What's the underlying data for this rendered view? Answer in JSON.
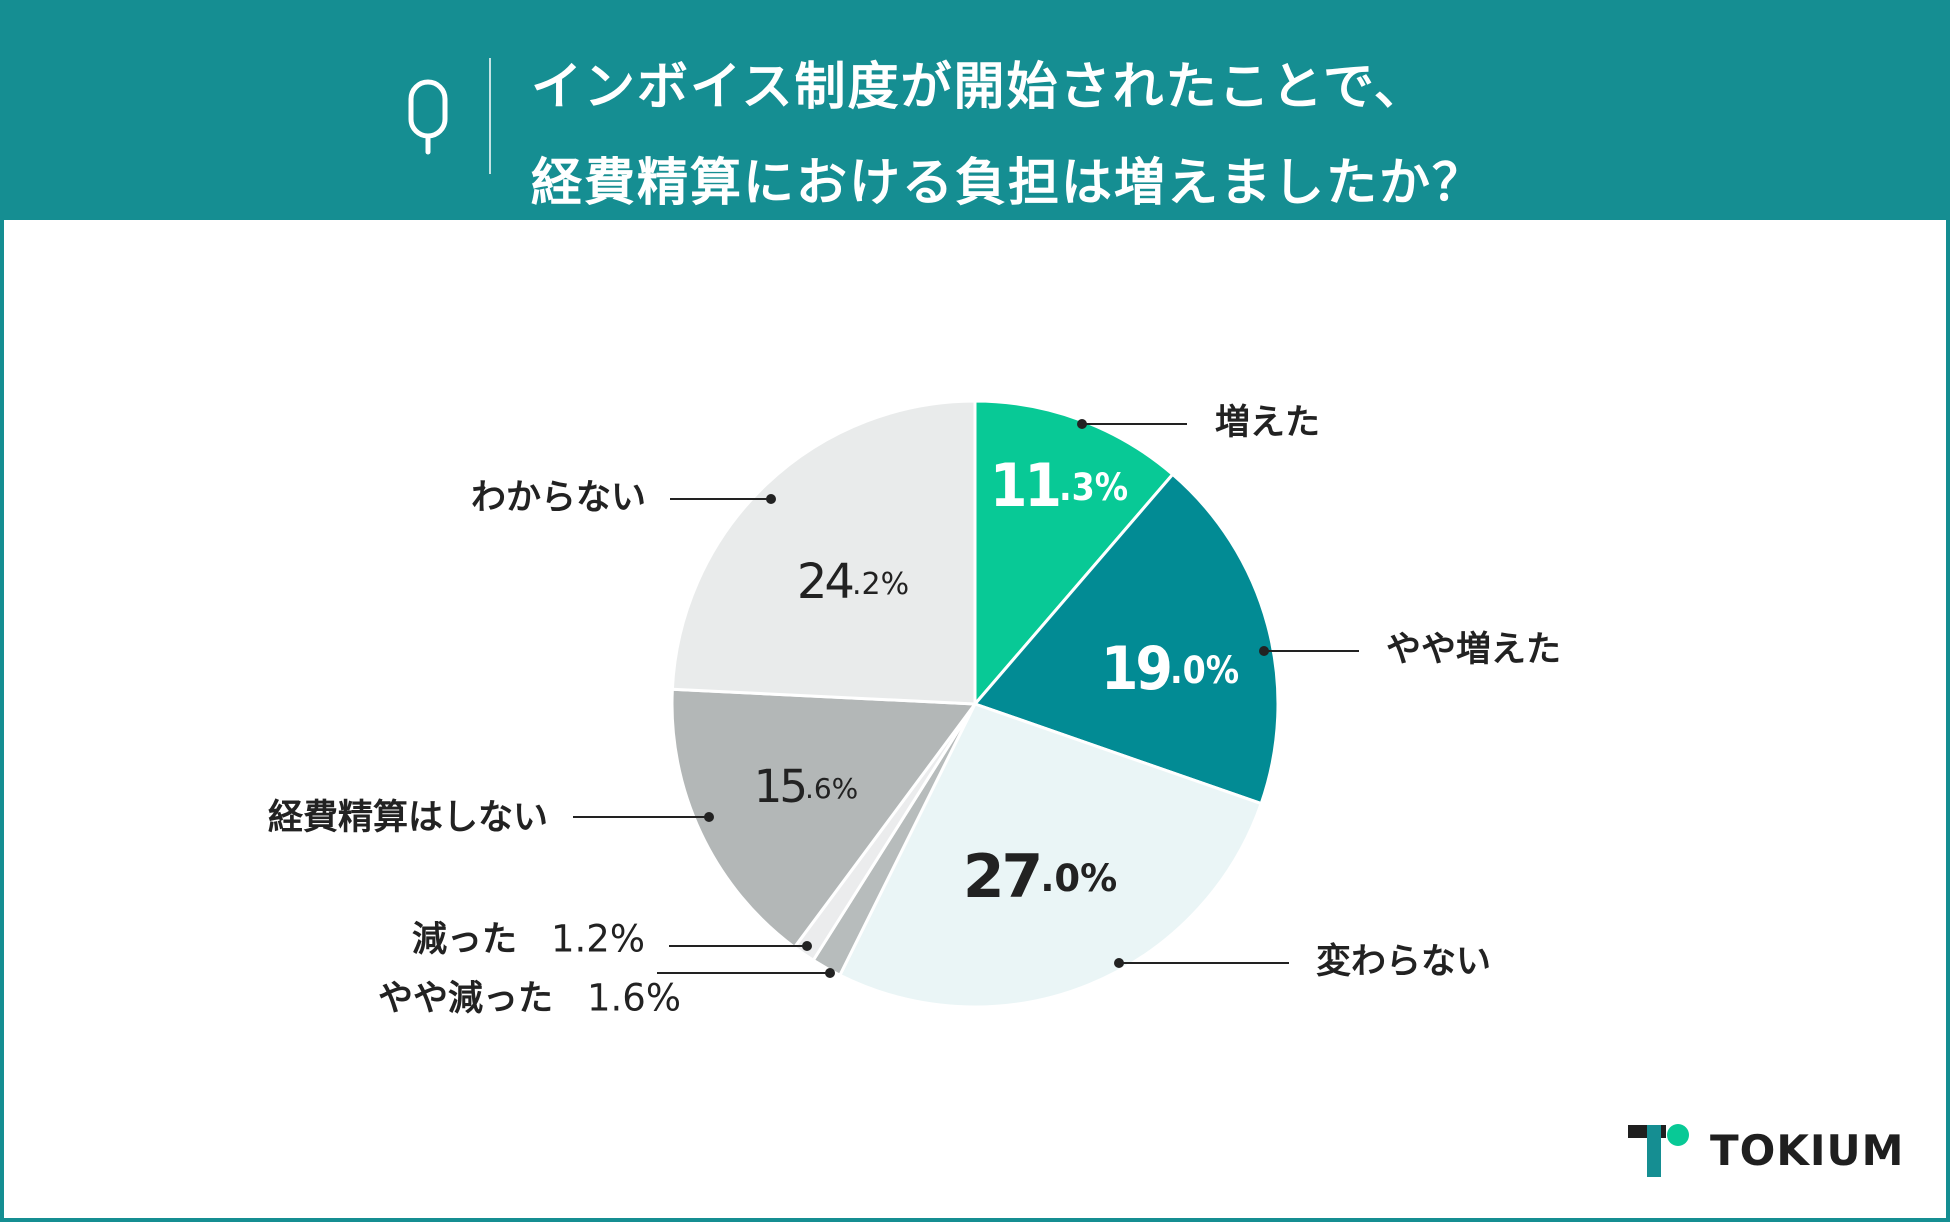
{
  "header": {
    "title_line1": "インボイス制度が開始されたことで、",
    "title_line2": "経費精算における負担は増えましたか？"
  },
  "logo": {
    "text": "TOKIUM"
  },
  "colors": {
    "header_bg": "#158e92",
    "increased": "#08c996",
    "slightly_increased": "#028b94",
    "unchanged": "#eaf5f6",
    "slightly_decreased": "#b7bcbc",
    "decreased": "#ebeced",
    "no_expense": "#b3b7b7",
    "unknown": "#e9ebeb"
  },
  "chart_data": {
    "type": "pie",
    "start_angle_deg": 0,
    "direction": "clockwise",
    "slices": [
      {
        "label": "増えた",
        "value": 11.3,
        "int": "11",
        "dec": ".3%",
        "color": "#08c996",
        "text_color": "#ffffff",
        "label_side": "right",
        "value_style": "condensed-bold"
      },
      {
        "label": "やや増えた",
        "value": 19.0,
        "int": "19",
        "dec": ".0%",
        "color": "#028b94",
        "text_color": "#ffffff",
        "label_side": "right",
        "value_style": "condensed-bold"
      },
      {
        "label": "変わらない",
        "value": 27.0,
        "int": "27",
        "dec": ".0%",
        "color": "#eaf5f6",
        "text_color": "#222222",
        "label_side": "right",
        "value_style": "bold"
      },
      {
        "label": "やや減った",
        "value": 1.6,
        "display": "1.6%",
        "color": "#b7bcbc",
        "text_color": "#222222",
        "label_side": "left",
        "value_style": "outside"
      },
      {
        "label": "減った",
        "value": 1.2,
        "display": "1.2%",
        "color": "#ebeced",
        "text_color": "#222222",
        "label_side": "left",
        "value_style": "outside"
      },
      {
        "label": "経費精算はしない",
        "value": 15.6,
        "int": "15",
        "dec": ".6%",
        "color": "#b3b7b7",
        "text_color": "#222222",
        "label_side": "left",
        "value_style": "regular"
      },
      {
        "label": "わからない",
        "value": 24.2,
        "int": "24",
        "dec": ".2%",
        "color": "#e9ebeb",
        "text_color": "#222222",
        "label_side": "left",
        "value_style": "regular"
      }
    ]
  }
}
